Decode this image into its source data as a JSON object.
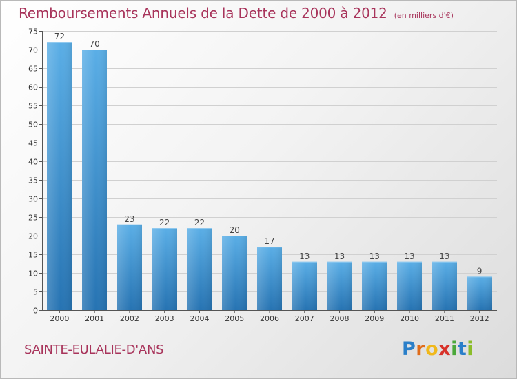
{
  "title": "Remboursements Annuels de la Dette de 2000 à 2012",
  "subtitle": "(en milliers d'€)",
  "commune": "SAINTE-EULALIE-D'ANS",
  "logo": [
    "P",
    "r",
    "o",
    "x",
    "i",
    "t",
    "i"
  ],
  "colors": {
    "title": "#a8345b",
    "bar_top": "#5aaee6",
    "bar_bottom": "#2673b2",
    "grid": "#d0d0d0"
  },
  "chart_data": {
    "type": "bar",
    "categories": [
      "2000",
      "2001",
      "2002",
      "2003",
      "2004",
      "2005",
      "2006",
      "2007",
      "2008",
      "2009",
      "2010",
      "2011",
      "2012"
    ],
    "values": [
      72,
      70,
      23,
      22,
      22,
      20,
      17,
      13,
      13,
      13,
      13,
      13,
      9
    ],
    "ylim": [
      0,
      75
    ],
    "yticks": [
      0,
      5,
      10,
      15,
      20,
      25,
      30,
      35,
      40,
      45,
      50,
      55,
      60,
      65,
      70,
      75
    ],
    "grid": true
  }
}
